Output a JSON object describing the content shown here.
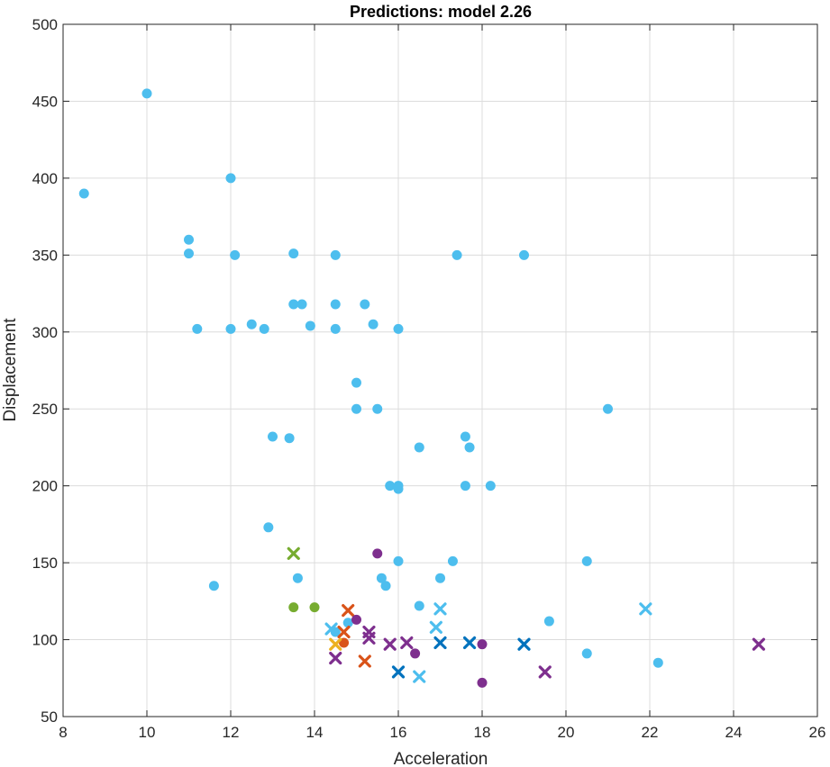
{
  "chart_data": {
    "type": "scatter",
    "title": "Predictions: model 2.26",
    "xlabel": "Acceleration",
    "ylabel": "Displacement",
    "xlim": [
      8,
      26
    ],
    "ylim": [
      50,
      500
    ],
    "xticks": [
      8,
      10,
      12,
      14,
      16,
      18,
      20,
      22,
      24,
      26
    ],
    "yticks": [
      50,
      100,
      150,
      200,
      250,
      300,
      350,
      400,
      450,
      500
    ],
    "grid": true,
    "legend": "none",
    "colors": {
      "light_blue": "#4DBEEE",
      "dark_blue": "#0072BD",
      "orange": "#D95319",
      "yellow": "#EDB120",
      "purple": "#7E2F8E",
      "green": "#77AC30"
    },
    "series": [
      {
        "marker": "dot",
        "color": "#4DBEEE",
        "points": [
          [
            8.5,
            390
          ],
          [
            10,
            455
          ],
          [
            11,
            360
          ],
          [
            11,
            351
          ],
          [
            11.2,
            302
          ],
          [
            12,
            400
          ],
          [
            12,
            302
          ],
          [
            12.1,
            350
          ],
          [
            12.5,
            305
          ],
          [
            12.8,
            302
          ],
          [
            12.9,
            173
          ],
          [
            13,
            232
          ],
          [
            13.4,
            231
          ],
          [
            13.5,
            351
          ],
          [
            13.5,
            318
          ],
          [
            13.6,
            140
          ],
          [
            13.7,
            318
          ],
          [
            13.9,
            304
          ],
          [
            14.5,
            350
          ],
          [
            14.5,
            318
          ],
          [
            14.5,
            302
          ],
          [
            14.5,
            105
          ],
          [
            14.8,
            111
          ],
          [
            15,
            267
          ],
          [
            15,
            250
          ],
          [
            15.2,
            318
          ],
          [
            15.4,
            305
          ],
          [
            15.5,
            250
          ],
          [
            15.6,
            140
          ],
          [
            15.7,
            135
          ],
          [
            15.8,
            200
          ],
          [
            16,
            302
          ],
          [
            16,
            200
          ],
          [
            16,
            198
          ],
          [
            16,
            151
          ],
          [
            16.5,
            225
          ],
          [
            16.5,
            122
          ],
          [
            17,
            140
          ],
          [
            17.3,
            151
          ],
          [
            17.4,
            350
          ],
          [
            17.6,
            232
          ],
          [
            17.6,
            200
          ],
          [
            17.7,
            225
          ],
          [
            18.2,
            200
          ],
          [
            19,
            350
          ],
          [
            19.6,
            112
          ],
          [
            20.5,
            151
          ],
          [
            20.5,
            91
          ],
          [
            21,
            250
          ],
          [
            22.2,
            85
          ],
          [
            11.6,
            135
          ]
        ]
      },
      {
        "marker": "cross",
        "color": "#4DBEEE",
        "points": [
          [
            14.4,
            107
          ],
          [
            16.5,
            76
          ],
          [
            16.9,
            108
          ],
          [
            17,
            120
          ],
          [
            21.9,
            120
          ]
        ]
      },
      {
        "marker": "cross",
        "color": "#0072BD",
        "points": [
          [
            16,
            79
          ],
          [
            17,
            98
          ],
          [
            17.7,
            98
          ],
          [
            19,
            97
          ]
        ]
      },
      {
        "marker": "cross",
        "color": "#D95319",
        "points": [
          [
            14.7,
            105
          ],
          [
            14.8,
            119
          ],
          [
            15.2,
            86
          ]
        ]
      },
      {
        "marker": "dot",
        "color": "#D95319",
        "points": [
          [
            14.7,
            98
          ]
        ]
      },
      {
        "marker": "cross",
        "color": "#EDB120",
        "points": [
          [
            14.5,
            97
          ]
        ]
      },
      {
        "marker": "cross",
        "color": "#7E2F8E",
        "points": [
          [
            14.5,
            88
          ],
          [
            15.3,
            105
          ],
          [
            15.3,
            101
          ],
          [
            15.8,
            97
          ],
          [
            16.2,
            98
          ],
          [
            19.5,
            79
          ],
          [
            24.6,
            97
          ]
        ]
      },
      {
        "marker": "dot",
        "color": "#7E2F8E",
        "points": [
          [
            15,
            113
          ],
          [
            15.5,
            156
          ],
          [
            16.4,
            91
          ],
          [
            18,
            97
          ],
          [
            18,
            72
          ]
        ]
      },
      {
        "marker": "cross",
        "color": "#77AC30",
        "points": [
          [
            13.5,
            156
          ]
        ]
      },
      {
        "marker": "dot",
        "color": "#77AC30",
        "points": [
          [
            13.5,
            121
          ],
          [
            14,
            121
          ]
        ]
      }
    ]
  }
}
